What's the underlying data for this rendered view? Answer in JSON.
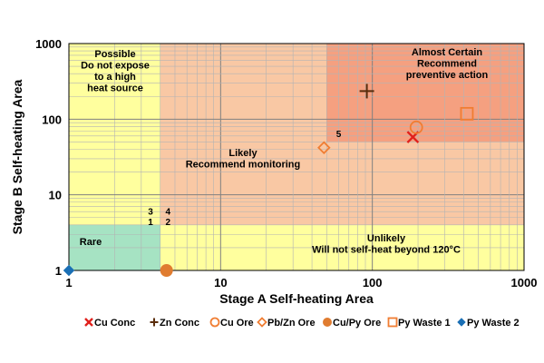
{
  "chart_data": {
    "type": "scatter",
    "xscale": "log",
    "yscale": "log",
    "xlim": [
      1,
      1000
    ],
    "ylim": [
      1,
      1000
    ],
    "xlabel": "Stage A Self-heating Area",
    "ylabel": "Stage B Self-heating Area",
    "x_ticks": [
      "1",
      "10",
      "100",
      "1000"
    ],
    "y_ticks": [
      "1",
      "10",
      "100",
      "1000"
    ],
    "grid": true,
    "legend_position": "bottom",
    "zones": [
      {
        "name": "rare",
        "color": "#a6e3c3",
        "x": [
          1,
          4
        ],
        "y": [
          1,
          4
        ],
        "lines": [
          "Rare"
        ]
      },
      {
        "name": "unlikely",
        "color": "#ffff9e",
        "x": [
          4,
          1000
        ],
        "y": [
          1,
          4
        ],
        "lines": [
          "Unlikely",
          "Will not self-heat beyond 120°C"
        ]
      },
      {
        "name": "possible",
        "color": "#ffff9e",
        "x": [
          1,
          4
        ],
        "y": [
          4,
          1000
        ],
        "lines": [
          "Possible",
          "Do not expose",
          "to a high",
          "heat source"
        ]
      },
      {
        "name": "likely",
        "color": "#f9c8a4",
        "x": [
          4,
          1000
        ],
        "y": [
          4,
          1000
        ],
        "lines": [
          "Likely",
          "Recommend monitoring"
        ]
      },
      {
        "name": "almost-certain",
        "color": "#f5a080",
        "x": [
          50,
          1000
        ],
        "y": [
          50,
          1000
        ],
        "lines": [
          "Almost Certain",
          "Recommend",
          "preventive action"
        ]
      }
    ],
    "annotations": [
      {
        "text": "3",
        "x": 3.45,
        "y": 5.5
      },
      {
        "text": "4",
        "x": 4.5,
        "y": 5.5
      },
      {
        "text": "1",
        "x": 3.45,
        "y": 4.0
      },
      {
        "text": "2",
        "x": 4.5,
        "y": 4.0
      },
      {
        "text": "5",
        "x": 60,
        "y": 58
      }
    ],
    "series": [
      {
        "name": "Cu Conc",
        "marker": "x",
        "color": "#e0201c",
        "points": [
          [
            185,
            58
          ]
        ]
      },
      {
        "name": "Zn Conc",
        "marker": "plus",
        "color": "#5a2d0c",
        "points": [
          [
            92,
            235
          ]
        ]
      },
      {
        "name": "Cu Ore",
        "marker": "circle-open",
        "color": "#f07d32",
        "points": [
          [
            195,
            78
          ]
        ]
      },
      {
        "name": "Pb/Zn Ore",
        "marker": "diamond-open",
        "color": "#f07d32",
        "points": [
          [
            48,
            42
          ]
        ]
      },
      {
        "name": "Cu/Py Ore",
        "marker": "circle-filled",
        "color": "#e07c30",
        "points": [
          [
            4.4,
            1
          ]
        ]
      },
      {
        "name": "Py Waste 1",
        "marker": "square-open",
        "color": "#f07d32",
        "points": [
          [
            420,
            118
          ]
        ]
      },
      {
        "name": "Py Waste 2",
        "marker": "diamond-filled",
        "color": "#1a6fb5",
        "points": [
          [
            1,
            1
          ]
        ]
      }
    ]
  }
}
